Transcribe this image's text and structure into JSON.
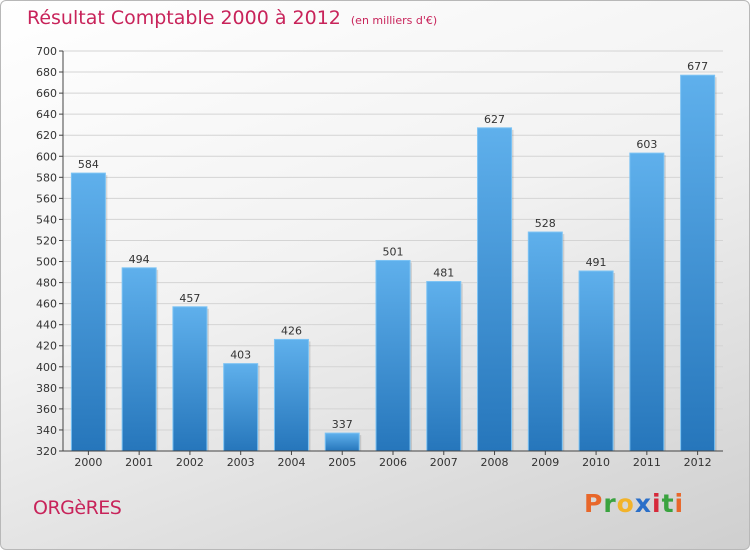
{
  "title": "Résultat Comptable 2000 à 2012",
  "subtitle": "(en milliers d'€)",
  "commune": "ORGèRES",
  "logo_text": "Proxiti",
  "colors": {
    "title": "#c8235a",
    "bar_top": "#5fb0ec",
    "bar_bottom": "#2676bb",
    "logo": [
      "#e8672a",
      "#3aa33f",
      "#f2b32a",
      "#2a6fc9",
      "#d6293a",
      "#3aa33f",
      "#e8672a"
    ]
  },
  "chart_data": {
    "type": "bar",
    "categories": [
      "2000",
      "2001",
      "2002",
      "2003",
      "2004",
      "2005",
      "2006",
      "2007",
      "2008",
      "2009",
      "2010",
      "2011",
      "2012"
    ],
    "values": [
      584,
      494,
      457,
      403,
      426,
      337,
      501,
      481,
      627,
      528,
      491,
      603,
      677
    ],
    "ylim": [
      320,
      700
    ],
    "yticks": [
      320,
      340,
      360,
      380,
      400,
      420,
      440,
      460,
      480,
      500,
      520,
      540,
      560,
      580,
      600,
      620,
      640,
      660,
      680,
      700
    ],
    "grid": true,
    "data_labels": true
  }
}
